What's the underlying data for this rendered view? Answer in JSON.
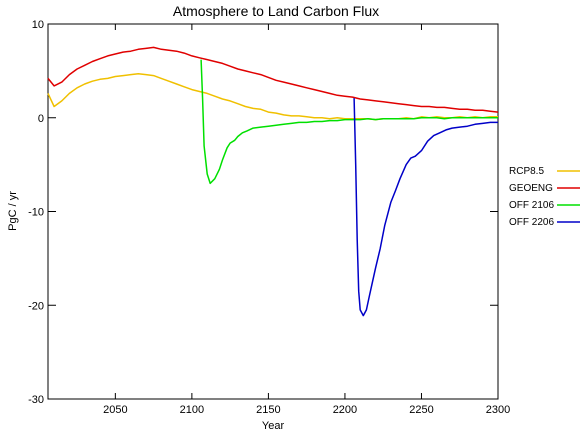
{
  "chart_data": {
    "type": "line",
    "title": "Atmosphere to Land Carbon Flux",
    "xlabel": "Year",
    "ylabel": "PgC / yr",
    "xlim": [
      2006,
      2300
    ],
    "ylim": [
      -30,
      10
    ],
    "xticks": [
      2050,
      2100,
      2150,
      2200,
      2250,
      2300
    ],
    "yticks": [
      -30,
      -20,
      -10,
      0,
      10
    ],
    "grid": false,
    "legend_position": "right",
    "series": [
      {
        "name": "RCP8.5",
        "color": "#f0c000",
        "points": [
          [
            2006,
            2.6
          ],
          [
            2010,
            1.2
          ],
          [
            2015,
            1.8
          ],
          [
            2020,
            2.6
          ],
          [
            2025,
            3.2
          ],
          [
            2030,
            3.6
          ],
          [
            2035,
            3.9
          ],
          [
            2040,
            4.1
          ],
          [
            2045,
            4.2
          ],
          [
            2050,
            4.4
          ],
          [
            2055,
            4.5
          ],
          [
            2060,
            4.6
          ],
          [
            2065,
            4.7
          ],
          [
            2070,
            4.6
          ],
          [
            2075,
            4.5
          ],
          [
            2080,
            4.2
          ],
          [
            2085,
            3.9
          ],
          [
            2090,
            3.6
          ],
          [
            2095,
            3.3
          ],
          [
            2100,
            3.0
          ],
          [
            2105,
            2.8
          ],
          [
            2110,
            2.6
          ],
          [
            2115,
            2.3
          ],
          [
            2120,
            2.0
          ],
          [
            2125,
            1.8
          ],
          [
            2130,
            1.5
          ],
          [
            2135,
            1.2
          ],
          [
            2140,
            1.0
          ],
          [
            2145,
            0.9
          ],
          [
            2150,
            0.6
          ],
          [
            2155,
            0.5
          ],
          [
            2160,
            0.3
          ],
          [
            2165,
            0.2
          ],
          [
            2170,
            0.2
          ],
          [
            2175,
            0.1
          ],
          [
            2180,
            0.0
          ],
          [
            2185,
            0.0
          ],
          [
            2190,
            -0.1
          ],
          [
            2195,
            0.0
          ],
          [
            2200,
            -0.1
          ],
          [
            2205,
            -0.1
          ],
          [
            2210,
            -0.1
          ],
          [
            2215,
            -0.1
          ],
          [
            2220,
            -0.2
          ],
          [
            2225,
            -0.1
          ],
          [
            2230,
            -0.1
          ],
          [
            2235,
            -0.1
          ],
          [
            2240,
            0.0
          ],
          [
            2245,
            -0.1
          ],
          [
            2250,
            0.1
          ],
          [
            2255,
            0.0
          ],
          [
            2260,
            0.1
          ],
          [
            2265,
            0.0
          ],
          [
            2270,
            0.0
          ],
          [
            2275,
            0.1
          ],
          [
            2280,
            0.0
          ],
          [
            2285,
            0.1
          ],
          [
            2290,
            0.0
          ],
          [
            2295,
            0.1
          ],
          [
            2300,
            0.1
          ]
        ]
      },
      {
        "name": "GEOENG",
        "color": "#e00000",
        "points": [
          [
            2006,
            4.2
          ],
          [
            2010,
            3.4
          ],
          [
            2015,
            3.8
          ],
          [
            2020,
            4.6
          ],
          [
            2025,
            5.2
          ],
          [
            2030,
            5.6
          ],
          [
            2035,
            6.0
          ],
          [
            2040,
            6.3
          ],
          [
            2045,
            6.6
          ],
          [
            2050,
            6.8
          ],
          [
            2055,
            7.0
          ],
          [
            2060,
            7.1
          ],
          [
            2065,
            7.3
          ],
          [
            2070,
            7.4
          ],
          [
            2075,
            7.5
          ],
          [
            2080,
            7.3
          ],
          [
            2085,
            7.2
          ],
          [
            2090,
            7.1
          ],
          [
            2095,
            6.9
          ],
          [
            2100,
            6.6
          ],
          [
            2105,
            6.4
          ],
          [
            2110,
            6.2
          ],
          [
            2115,
            6.0
          ],
          [
            2120,
            5.8
          ],
          [
            2125,
            5.5
          ],
          [
            2130,
            5.2
          ],
          [
            2135,
            5.0
          ],
          [
            2140,
            4.8
          ],
          [
            2145,
            4.6
          ],
          [
            2150,
            4.3
          ],
          [
            2155,
            4.0
          ],
          [
            2160,
            3.8
          ],
          [
            2165,
            3.6
          ],
          [
            2170,
            3.4
          ],
          [
            2175,
            3.2
          ],
          [
            2180,
            3.0
          ],
          [
            2185,
            2.8
          ],
          [
            2190,
            2.6
          ],
          [
            2195,
            2.4
          ],
          [
            2200,
            2.3
          ],
          [
            2205,
            2.2
          ],
          [
            2210,
            2.0
          ],
          [
            2215,
            1.9
          ],
          [
            2220,
            1.8
          ],
          [
            2225,
            1.7
          ],
          [
            2230,
            1.6
          ],
          [
            2235,
            1.5
          ],
          [
            2240,
            1.4
          ],
          [
            2245,
            1.3
          ],
          [
            2250,
            1.2
          ],
          [
            2255,
            1.2
          ],
          [
            2260,
            1.1
          ],
          [
            2265,
            1.1
          ],
          [
            2270,
            1.0
          ],
          [
            2275,
            0.9
          ],
          [
            2280,
            0.9
          ],
          [
            2285,
            0.8
          ],
          [
            2290,
            0.8
          ],
          [
            2295,
            0.7
          ],
          [
            2300,
            0.6
          ]
        ]
      },
      {
        "name": "OFF 2106",
        "color": "#00e000",
        "points": [
          [
            2106,
            6.2
          ],
          [
            2107,
            2.0
          ],
          [
            2108,
            -3.0
          ],
          [
            2110,
            -6.0
          ],
          [
            2112,
            -7.0
          ],
          [
            2115,
            -6.5
          ],
          [
            2118,
            -5.5
          ],
          [
            2120,
            -4.5
          ],
          [
            2123,
            -3.2
          ],
          [
            2125,
            -2.7
          ],
          [
            2128,
            -2.4
          ],
          [
            2130,
            -2.0
          ],
          [
            2133,
            -1.6
          ],
          [
            2136,
            -1.4
          ],
          [
            2140,
            -1.1
          ],
          [
            2145,
            -1.0
          ],
          [
            2150,
            -0.9
          ],
          [
            2155,
            -0.8
          ],
          [
            2160,
            -0.7
          ],
          [
            2165,
            -0.6
          ],
          [
            2170,
            -0.5
          ],
          [
            2175,
            -0.5
          ],
          [
            2180,
            -0.4
          ],
          [
            2185,
            -0.4
          ],
          [
            2190,
            -0.3
          ],
          [
            2195,
            -0.3
          ],
          [
            2200,
            -0.2
          ],
          [
            2205,
            -0.2
          ],
          [
            2210,
            -0.2
          ],
          [
            2215,
            -0.1
          ],
          [
            2220,
            -0.2
          ],
          [
            2225,
            -0.1
          ],
          [
            2230,
            -0.1
          ],
          [
            2235,
            -0.1
          ],
          [
            2240,
            -0.1
          ],
          [
            2245,
            -0.1
          ],
          [
            2250,
            0.0
          ],
          [
            2255,
            0.0
          ],
          [
            2260,
            0.0
          ],
          [
            2265,
            -0.1
          ],
          [
            2270,
            0.0
          ],
          [
            2275,
            0.0
          ],
          [
            2280,
            0.0
          ],
          [
            2285,
            0.0
          ],
          [
            2290,
            0.0
          ],
          [
            2295,
            0.0
          ],
          [
            2300,
            0.0
          ]
        ]
      },
      {
        "name": "OFF 2206",
        "color": "#0000c8",
        "points": [
          [
            2206,
            2.1
          ],
          [
            2207,
            -5.0
          ],
          [
            2208,
            -13.0
          ],
          [
            2209,
            -18.5
          ],
          [
            2210,
            -20.5
          ],
          [
            2212,
            -21.1
          ],
          [
            2214,
            -20.5
          ],
          [
            2216,
            -19.0
          ],
          [
            2218,
            -17.5
          ],
          [
            2220,
            -16.0
          ],
          [
            2223,
            -14.0
          ],
          [
            2226,
            -11.5
          ],
          [
            2230,
            -9.0
          ],
          [
            2233,
            -7.8
          ],
          [
            2236,
            -6.5
          ],
          [
            2240,
            -5.0
          ],
          [
            2243,
            -4.3
          ],
          [
            2246,
            -4.1
          ],
          [
            2250,
            -3.5
          ],
          [
            2254,
            -2.5
          ],
          [
            2258,
            -1.9
          ],
          [
            2262,
            -1.6
          ],
          [
            2266,
            -1.3
          ],
          [
            2270,
            -1.1
          ],
          [
            2275,
            -1.0
          ],
          [
            2280,
            -0.9
          ],
          [
            2285,
            -0.7
          ],
          [
            2290,
            -0.6
          ],
          [
            2295,
            -0.5
          ],
          [
            2300,
            -0.5
          ]
        ]
      }
    ]
  }
}
